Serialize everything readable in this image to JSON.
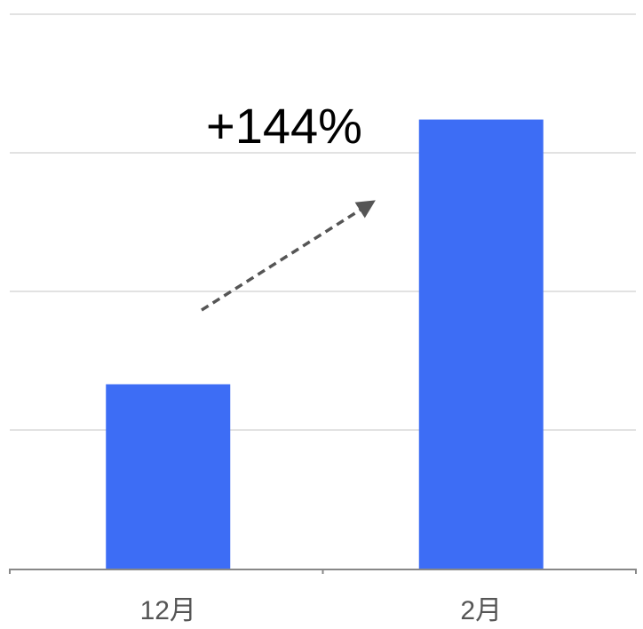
{
  "chart_data": {
    "type": "bar",
    "categories": [
      "12月",
      "2月"
    ],
    "values": [
      1.33,
      3.24
    ],
    "ylim": [
      0,
      4
    ],
    "grid": true,
    "bar_color": "#3d6df5",
    "grid_color": "#d9d9d9",
    "axis_color": "#888888",
    "annotation": {
      "text": "+144%",
      "arrow": "dashed-up-right",
      "arrow_color": "#555555"
    },
    "title": "",
    "xlabel": "",
    "ylabel": ""
  }
}
